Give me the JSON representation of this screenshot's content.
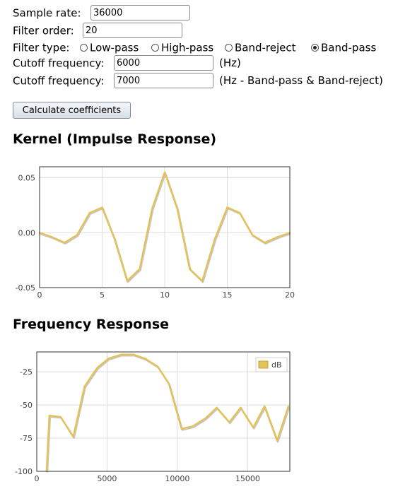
{
  "form": {
    "sample_rate_label": "Sample rate:",
    "sample_rate_value": "36000",
    "filter_order_label": "Filter order:",
    "filter_order_value": "20",
    "filter_type_label": "Filter type:",
    "filter_types": [
      {
        "label": "Low-pass",
        "checked": false
      },
      {
        "label": "High-pass",
        "checked": false
      },
      {
        "label": "Band-reject",
        "checked": false
      },
      {
        "label": "Band-pass",
        "checked": true
      }
    ],
    "cutoff1_label": "Cutoff frequency:",
    "cutoff1_value": "6000",
    "cutoff1_unit": "(Hz)",
    "cutoff2_label": "Cutoff frequency:",
    "cutoff2_value": "7000",
    "cutoff2_unit": "(Hz - Band-pass & Band-reject)",
    "calculate_label": "Calculate coefficients"
  },
  "headings": {
    "kernel": "Kernel (Impulse Response)",
    "frequency": "Frequency Response"
  },
  "colors": {
    "series": "#e3c25a",
    "shadow": "#b9b9b9",
    "axis": "#333333",
    "grid": "#dddddd"
  },
  "chart_data": [
    {
      "type": "line",
      "x": [
        0,
        1,
        2,
        3,
        4,
        5,
        6,
        7,
        8,
        9,
        10,
        11,
        12,
        13,
        14,
        15,
        16,
        17,
        18,
        19,
        20
      ],
      "values": [
        0.0,
        -0.004,
        -0.009,
        -0.002,
        0.018,
        0.023,
        -0.006,
        -0.044,
        -0.033,
        0.022,
        0.055,
        0.022,
        -0.033,
        -0.044,
        -0.006,
        0.023,
        0.018,
        -0.002,
        -0.009,
        -0.004,
        0.0
      ],
      "xlim": [
        0,
        20
      ],
      "ylim": [
        -0.05,
        0.06
      ],
      "xticks": [
        0,
        5,
        10,
        15,
        20
      ],
      "yticks": [
        -0.05,
        0.0,
        0.05
      ],
      "ytick_labels": [
        "-0.05",
        "0.00",
        "0.05"
      ],
      "grid": true,
      "legend": null
    },
    {
      "type": "line",
      "x": [
        700,
        900,
        1700,
        2600,
        3400,
        4300,
        5100,
        6000,
        6900,
        7700,
        8600,
        9400,
        10300,
        11100,
        12000,
        12800,
        13700,
        14500,
        15400,
        16200,
        17100,
        17900
      ],
      "values": [
        -100,
        -58,
        -59,
        -74,
        -36,
        -22,
        -15,
        -12,
        -12,
        -15,
        -21,
        -34,
        -68,
        -66,
        -60,
        -52,
        -63,
        -52,
        -67,
        -51,
        -77,
        -51
      ],
      "xlim": [
        0,
        18000
      ],
      "ylim": [
        -100,
        -10
      ],
      "xticks": [
        0,
        5000,
        10000,
        15000
      ],
      "yticks": [
        -100,
        -75,
        -50,
        -25
      ],
      "ytick_labels": [
        "-100",
        "-75",
        "-50",
        "-25"
      ],
      "grid": true,
      "legend": {
        "entries": [
          "dB"
        ],
        "placement": "top-right"
      }
    }
  ]
}
